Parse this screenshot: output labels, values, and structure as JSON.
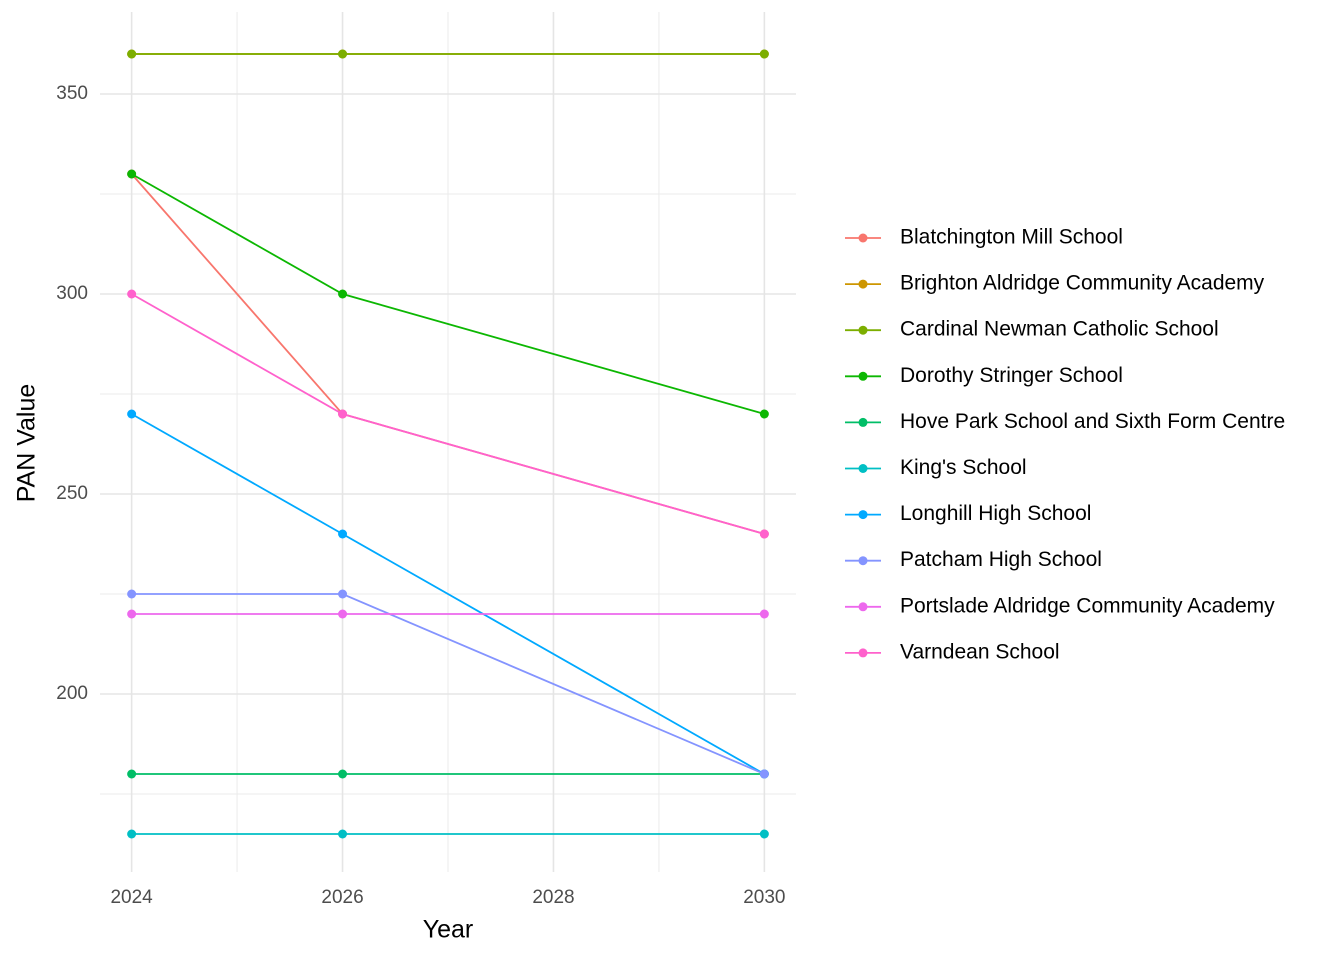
{
  "chart_data": {
    "type": "line",
    "x_label": "Year",
    "y_label": "PAN Value",
    "x": [
      2024,
      2026,
      2030
    ],
    "xlim": [
      2023.7,
      2030.3
    ],
    "xticks": [
      2024,
      2026,
      2028,
      2030
    ],
    "ylim": [
      155.5,
      370.5
    ],
    "yticks": [
      200,
      250,
      300,
      350
    ],
    "grid": true,
    "legend": "right",
    "series": [
      {
        "name": "Blatchington Mill School",
        "color": "#F8766D",
        "values": [
          330,
          270,
          240
        ]
      },
      {
        "name": "Brighton Aldridge Community Academy",
        "color": "#CD9600",
        "values": [
          360,
          360,
          360
        ]
      },
      {
        "name": "Cardinal Newman Catholic School",
        "color": "#7CAE00",
        "values": [
          360,
          360,
          360
        ]
      },
      {
        "name": "Dorothy Stringer School",
        "color": "#0CB702",
        "values": [
          330,
          300,
          270
        ]
      },
      {
        "name": "Hove Park School and Sixth Form Centre",
        "color": "#00BE67",
        "values": [
          180,
          180,
          180
        ]
      },
      {
        "name": "King's School",
        "color": "#00BFC4",
        "values": [
          165,
          165,
          165
        ]
      },
      {
        "name": "Longhill High School",
        "color": "#00A9FF",
        "values": [
          270,
          240,
          180
        ]
      },
      {
        "name": "Patcham High School",
        "color": "#8494FF",
        "values": [
          225,
          225,
          180
        ]
      },
      {
        "name": "Portslade Aldridge Community Academy",
        "color": "#ED68ED",
        "values": [
          220,
          220,
          220
        ]
      },
      {
        "name": "Varndean School",
        "color": "#FF61CC",
        "values": [
          300,
          270,
          240
        ]
      }
    ]
  }
}
